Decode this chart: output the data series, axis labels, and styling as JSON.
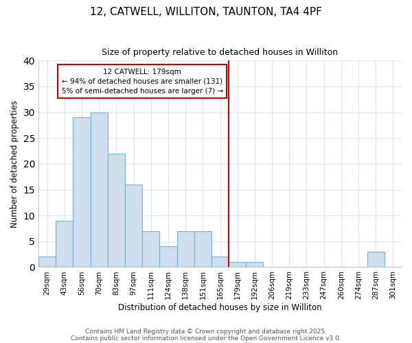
{
  "title": "12, CATWELL, WILLITON, TAUNTON, TA4 4PF",
  "subtitle": "Size of property relative to detached houses in Williton",
  "xlabel": "Distribution of detached houses by size in Williton",
  "ylabel": "Number of detached properties",
  "footer1": "Contains HM Land Registry data © Crown copyright and database right 2025.",
  "footer2": "Contains public sector information licensed under the Open Government Licence v3.0.",
  "bar_color": "#cfdded",
  "bar_edgecolor": "#7aafd4",
  "categories": [
    "29sqm",
    "43sqm",
    "56sqm",
    "70sqm",
    "83sqm",
    "97sqm",
    "111sqm",
    "124sqm",
    "138sqm",
    "151sqm",
    "165sqm",
    "179sqm",
    "192sqm",
    "206sqm",
    "219sqm",
    "233sqm",
    "247sqm",
    "260sqm",
    "274sqm",
    "287sqm",
    "301sqm"
  ],
  "values": [
    2,
    9,
    29,
    30,
    22,
    16,
    7,
    4,
    7,
    7,
    2,
    1,
    1,
    0,
    0,
    0,
    0,
    0,
    0,
    3,
    0
  ],
  "vline_index": 10,
  "annotation_text": "12 CATWELL: 179sqm\n← 94% of detached houses are smaller (131)\n5% of semi-detached houses are larger (7) →",
  "vline_color": "#cc0000",
  "ylim": [
    0,
    40
  ],
  "yticks": [
    0,
    5,
    10,
    15,
    20,
    25,
    30,
    35,
    40
  ],
  "bg_color": "#ffffff",
  "grid_color": "#dde6f0",
  "title_fontsize": 11,
  "subtitle_fontsize": 9,
  "ylabel_fontsize": 8.5,
  "xlabel_fontsize": 8.5,
  "tick_fontsize": 7.5,
  "footer_fontsize": 6.5
}
